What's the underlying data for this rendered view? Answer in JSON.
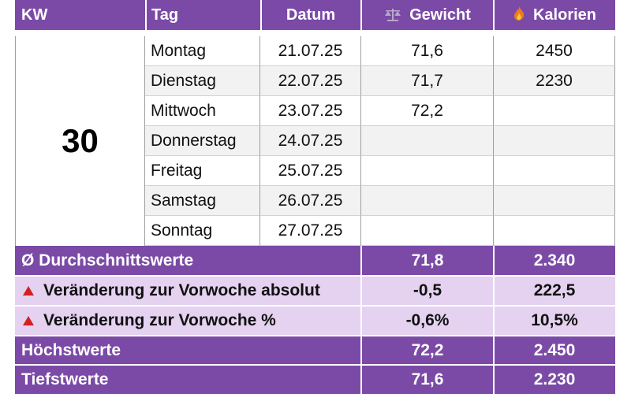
{
  "header": {
    "kw": "KW",
    "tag": "Tag",
    "datum": "Datum",
    "gewicht": "Gewicht",
    "kalorien": "Kalorien",
    "gewicht_icon": "scale-icon",
    "kalorien_icon": "flame-icon"
  },
  "week": "30",
  "days": [
    {
      "tag": "Montag",
      "datum": "21.07.25",
      "gewicht": "71,6",
      "kalorien": "2450"
    },
    {
      "tag": "Dienstag",
      "datum": "22.07.25",
      "gewicht": "71,7",
      "kalorien": "2230"
    },
    {
      "tag": "Mittwoch",
      "datum": "23.07.25",
      "gewicht": "72,2",
      "kalorien": ""
    },
    {
      "tag": "Donnerstag",
      "datum": "24.07.25",
      "gewicht": "",
      "kalorien": ""
    },
    {
      "tag": "Freitag",
      "datum": "25.07.25",
      "gewicht": "",
      "kalorien": ""
    },
    {
      "tag": "Samstag",
      "datum": "26.07.25",
      "gewicht": "",
      "kalorien": ""
    },
    {
      "tag": "Sonntag",
      "datum": "27.07.25",
      "gewicht": "",
      "kalorien": ""
    }
  ],
  "summary": {
    "avg": {
      "label": "Ø Durchschnittswerte",
      "gewicht": "71,8",
      "kalorien": "2.340"
    },
    "change_abs": {
      "label": "Veränderung zur Vorwoche absolut",
      "gewicht": "-0,5",
      "kalorien": "222,5"
    },
    "change_pct": {
      "label": "Veränderung zur Vorwoche %",
      "gewicht": "-0,6%",
      "kalorien": "10,5%"
    },
    "max": {
      "label": "Höchstwerte",
      "gewicht": "72,2",
      "kalorien": "2.450"
    },
    "min": {
      "label": "Tiefstwerte",
      "gewicht": "71,6",
      "kalorien": "2.230"
    }
  },
  "colors": {
    "header_purple": "#7b4aa6",
    "light_purple": "#e4d2f0",
    "triangle_red": "#d32020"
  }
}
